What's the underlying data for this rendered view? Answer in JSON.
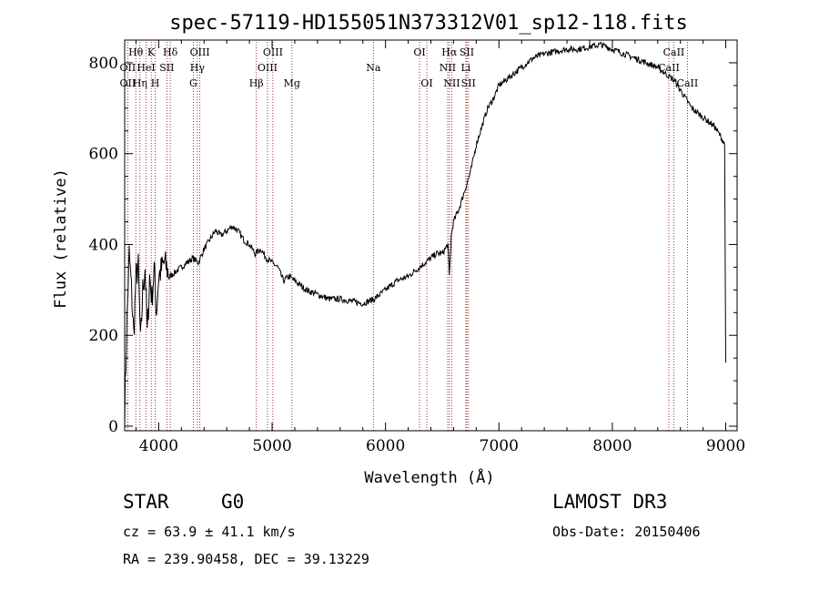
{
  "chart_data": {
    "type": "line",
    "title": "spec-57119-HD155051N373312V01_sp12-118.fits",
    "xlabel": "Wavelength (Å)",
    "ylabel": "Flux (relative)",
    "xlim": [
      3700,
      9100
    ],
    "ylim": [
      -10,
      850
    ],
    "xticks": [
      4000,
      5000,
      6000,
      7000,
      8000,
      9000
    ],
    "yticks": [
      0,
      200,
      400,
      600,
      800
    ],
    "series": [
      {
        "name": "flux",
        "x": [
          3700,
          3720,
          3740,
          3760,
          3780,
          3800,
          3820,
          3840,
          3860,
          3880,
          3900,
          3920,
          3940,
          3960,
          3980,
          4000,
          4050,
          4100,
          4150,
          4200,
          4250,
          4300,
          4350,
          4400,
          4450,
          4500,
          4550,
          4600,
          4650,
          4700,
          4750,
          4800,
          4850,
          4900,
          4950,
          5000,
          5050,
          5100,
          5150,
          5200,
          5300,
          5400,
          5500,
          5600,
          5700,
          5800,
          5900,
          6000,
          6100,
          6200,
          6300,
          6400,
          6450,
          6500,
          6550,
          6563,
          6580,
          6600,
          6650,
          6700,
          6750,
          6800,
          6850,
          6900,
          6950,
          7000,
          7050,
          7100,
          7150,
          7200,
          7300,
          7400,
          7500,
          7600,
          7700,
          7800,
          7900,
          8000,
          8100,
          8200,
          8300,
          8400,
          8500,
          8550,
          8600,
          8650,
          8700,
          8750,
          8800,
          8850,
          8900,
          8950,
          8990,
          9000
        ],
        "y": [
          30,
          230,
          380,
          300,
          200,
          330,
          350,
          180,
          300,
          350,
          200,
          330,
          280,
          350,
          250,
          330,
          360,
          330,
          340,
          350,
          360,
          370,
          360,
          390,
          410,
          430,
          420,
          430,
          440,
          430,
          410,
          400,
          380,
          390,
          370,
          360,
          350,
          320,
          330,
          320,
          300,
          290,
          280,
          280,
          275,
          270,
          280,
          300,
          320,
          330,
          350,
          370,
          380,
          380,
          400,
          330,
          420,
          450,
          480,
          520,
          560,
          620,
          660,
          700,
          720,
          750,
          760,
          770,
          780,
          790,
          810,
          820,
          825,
          830,
          830,
          835,
          840,
          830,
          820,
          810,
          800,
          790,
          770,
          760,
          740,
          720,
          700,
          690,
          680,
          670,
          660,
          640,
          620,
          140
        ]
      }
    ],
    "annotations": [
      {
        "label": "Hθ",
        "x": 3798,
        "row": 1
      },
      {
        "label": "OII",
        "x": 3727,
        "row": 2
      },
      {
        "label": "OII",
        "x": 3727,
        "row": 3
      },
      {
        "label": "K",
        "x": 3934,
        "row": 1
      },
      {
        "label": "HeI",
        "x": 3889,
        "row": 2
      },
      {
        "label": "Hη",
        "x": 3835,
        "row": 3
      },
      {
        "label": "Hδ",
        "x": 4102,
        "row": 1
      },
      {
        "label": "SII",
        "x": 4072,
        "row": 2
      },
      {
        "label": "H",
        "x": 3969,
        "row": 3
      },
      {
        "label": "OIII",
        "x": 4363,
        "row": 1
      },
      {
        "label": "Hγ",
        "x": 4341,
        "row": 2
      },
      {
        "label": "G",
        "x": 4305,
        "row": 3
      },
      {
        "label": "OIII",
        "x": 5007,
        "row": 1
      },
      {
        "label": "OIII",
        "x": 4959,
        "row": 2
      },
      {
        "label": "Hβ",
        "x": 4861,
        "row": 3
      },
      {
        "label": "Mg",
        "x": 5175,
        "row": 3
      },
      {
        "label": "Na",
        "x": 5893,
        "row": 2
      },
      {
        "label": "OI",
        "x": 6300,
        "row": 1
      },
      {
        "label": "OI",
        "x": 6364,
        "row": 3
      },
      {
        "label": "Hα",
        "x": 6563,
        "row": 1
      },
      {
        "label": "SII",
        "x": 6717,
        "row": 1
      },
      {
        "label": "NII",
        "x": 6548,
        "row": 2
      },
      {
        "label": "Li",
        "x": 6708,
        "row": 2
      },
      {
        "label": "NII",
        "x": 6584,
        "row": 3
      },
      {
        "label": "SII",
        "x": 6731,
        "row": 3
      },
      {
        "label": "CaII",
        "x": 8542,
        "row": 1
      },
      {
        "label": "CaII",
        "x": 8498,
        "row": 2
      },
      {
        "label": "CaII",
        "x": 8662,
        "row": 3
      }
    ],
    "line_color": "#000000",
    "marker_color": "#8b0000"
  },
  "footer": {
    "object_type": "STAR",
    "subclass": "G0",
    "survey": "LAMOST DR3",
    "cz": "cz = 63.9 ± 41.1 km/s",
    "obs_date": "Obs-Date: 20150406",
    "coords": "RA = 239.90458, DEC =  39.13229"
  }
}
